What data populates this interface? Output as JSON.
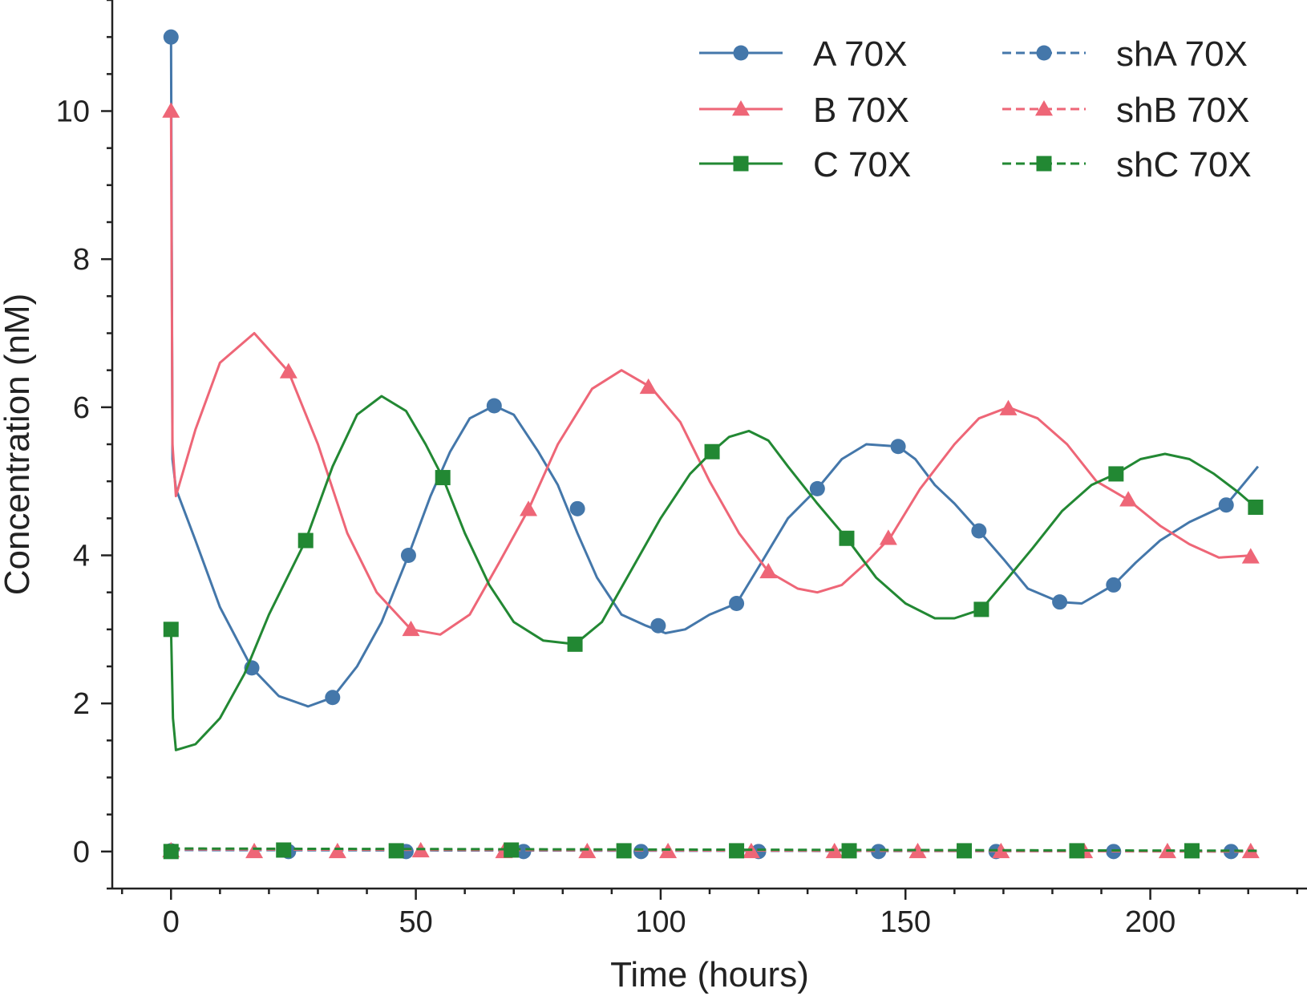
{
  "chart_data": {
    "type": "line",
    "title": "",
    "xlabel": "Time (hours)",
    "ylabel": "Concentration (nM)",
    "xlim": [
      -12,
      232
    ],
    "ylim": [
      -0.5,
      11.5
    ],
    "xticks": [
      0,
      50,
      100,
      150,
      200
    ],
    "yticks": [
      0,
      2,
      4,
      6,
      8,
      10
    ],
    "grid": false,
    "legend": "top-right",
    "series": [
      {
        "name": "A 70X",
        "color": "#4477aa",
        "style": "solid",
        "marker": "circle",
        "x": [
          0,
          0.3,
          1,
          5,
          10,
          16.5,
          22,
          28,
          33,
          38,
          43,
          48.5,
          53,
          57,
          61,
          66,
          70,
          75,
          79,
          83,
          87,
          92,
          97,
          101,
          105,
          110,
          115.5,
          121,
          126,
          132,
          137,
          142,
          148.5,
          152,
          156,
          160,
          165,
          170,
          175,
          181.5,
          186,
          192.5,
          197,
          202,
          208,
          215.5,
          222
        ],
        "y": [
          11,
          5.3,
          4.9,
          4.2,
          3.3,
          2.48,
          2.1,
          1.96,
          2.08,
          2.5,
          3.1,
          4.0,
          4.8,
          5.4,
          5.85,
          6.02,
          5.9,
          5.4,
          4.95,
          4.3,
          3.7,
          3.2,
          3.05,
          2.95,
          3.0,
          3.2,
          3.35,
          3.95,
          4.5,
          4.9,
          5.3,
          5.5,
          5.47,
          5.3,
          4.95,
          4.7,
          4.33,
          3.95,
          3.55,
          3.37,
          3.35,
          3.6,
          3.9,
          4.2,
          4.45,
          4.68,
          5.2
        ],
        "markers_x": [
          0,
          16.5,
          33,
          48.5,
          66,
          83,
          99.5,
          115.5,
          132,
          148.5,
          165,
          181.5,
          192.5,
          215.5
        ],
        "markers_y": [
          11,
          2.48,
          2.08,
          4.0,
          6.02,
          4.63,
          3.05,
          3.35,
          4.9,
          5.47,
          4.33,
          3.37,
          3.6,
          4.68
        ]
      },
      {
        "name": "B 70X",
        "color": "#ee6677",
        "style": "solid",
        "marker": "triangle",
        "x": [
          0,
          0.3,
          1,
          5,
          10,
          17,
          24,
          30,
          36,
          42,
          49,
          55,
          61,
          67,
          73,
          79,
          86,
          92,
          98,
          104,
          110,
          116,
          122,
          128,
          132,
          137,
          142,
          147,
          153,
          160,
          165,
          171,
          177,
          183,
          189,
          195.5,
          202,
          208,
          214,
          221
        ],
        "y": [
          10,
          5.5,
          4.8,
          5.7,
          6.6,
          7.0,
          6.48,
          5.5,
          4.3,
          3.5,
          3.0,
          2.93,
          3.2,
          3.9,
          4.62,
          5.5,
          6.25,
          6.5,
          6.27,
          5.8,
          5.0,
          4.3,
          3.78,
          3.55,
          3.5,
          3.6,
          3.9,
          4.25,
          4.9,
          5.5,
          5.85,
          6.0,
          5.85,
          5.5,
          5.0,
          4.75,
          4.4,
          4.15,
          3.97,
          4.0
        ],
        "markers_x": [
          0,
          24,
          49,
          73,
          97.5,
          122,
          146.5,
          171,
          195.5,
          220.5
        ],
        "markers_y": [
          10,
          6.48,
          3.0,
          4.62,
          6.27,
          3.78,
          4.23,
          5.98,
          4.75,
          3.98
        ]
      },
      {
        "name": "C 70X",
        "color": "#228833",
        "style": "solid",
        "marker": "square",
        "x": [
          0,
          0.4,
          1,
          5,
          10,
          15,
          20,
          27.5,
          33,
          38,
          43,
          48,
          52,
          55.5,
          60,
          65,
          70,
          76,
          82.5,
          88,
          94,
          100,
          106,
          110.5,
          114,
          118,
          122,
          126,
          132,
          138,
          144,
          150,
          156,
          160,
          165.5,
          171,
          176,
          182,
          188,
          193,
          198,
          203,
          208,
          213,
          218,
          221.5
        ],
        "y": [
          3.0,
          1.8,
          1.37,
          1.45,
          1.8,
          2.4,
          3.2,
          4.2,
          5.2,
          5.9,
          6.15,
          5.95,
          5.5,
          5.05,
          4.3,
          3.6,
          3.1,
          2.85,
          2.8,
          3.1,
          3.8,
          4.5,
          5.1,
          5.4,
          5.6,
          5.68,
          5.55,
          5.2,
          4.7,
          4.23,
          3.7,
          3.35,
          3.15,
          3.15,
          3.27,
          3.7,
          4.1,
          4.6,
          4.95,
          5.1,
          5.3,
          5.37,
          5.3,
          5.1,
          4.85,
          4.65
        ],
        "markers_x": [
          0,
          27.5,
          55.5,
          82.5,
          110.5,
          138,
          165.5,
          193,
          221.5
        ],
        "markers_y": [
          3.0,
          4.2,
          5.05,
          2.8,
          5.4,
          4.23,
          3.27,
          5.1,
          4.65
        ]
      },
      {
        "name": "shA 70X",
        "color": "#4477aa",
        "style": "dashed",
        "marker": "circle",
        "x": [
          0,
          222
        ],
        "y": [
          0.02,
          0.0
        ],
        "markers_x": [
          0,
          24,
          48,
          72,
          96,
          120,
          144.5,
          168.5,
          192.5,
          216.5
        ],
        "markers_y": [
          0.01,
          0.0,
          0.0,
          0.0,
          0.0,
          0.0,
          0.0,
          0.0,
          0.0,
          0.0
        ]
      },
      {
        "name": "shB 70X",
        "color": "#ee6677",
        "style": "dashed",
        "marker": "triangle",
        "x": [
          0,
          222
        ],
        "y": [
          0.03,
          0.0
        ],
        "markers_x": [
          0,
          17,
          34,
          51,
          68,
          85,
          101.5,
          118.5,
          135.5,
          152.5,
          169.5,
          186.5,
          203.5,
          220.5
        ],
        "markers_y": [
          0.01,
          0.0,
          0.0,
          0.01,
          0.0,
          0.0,
          0.0,
          0.0,
          0.0,
          0.0,
          0.0,
          0.0,
          0.0,
          0.0
        ]
      },
      {
        "name": "shC 70X",
        "color": "#228833",
        "style": "dashed",
        "marker": "square",
        "x": [
          0,
          222
        ],
        "y": [
          0.04,
          0.01
        ],
        "markers_x": [
          0,
          23,
          46,
          69.5,
          92.5,
          115.5,
          138.5,
          162,
          185,
          208.5
        ],
        "markers_y": [
          0.0,
          0.02,
          0.01,
          0.02,
          0.01,
          0.01,
          0.01,
          0.01,
          0.01,
          0.01
        ]
      }
    ]
  }
}
